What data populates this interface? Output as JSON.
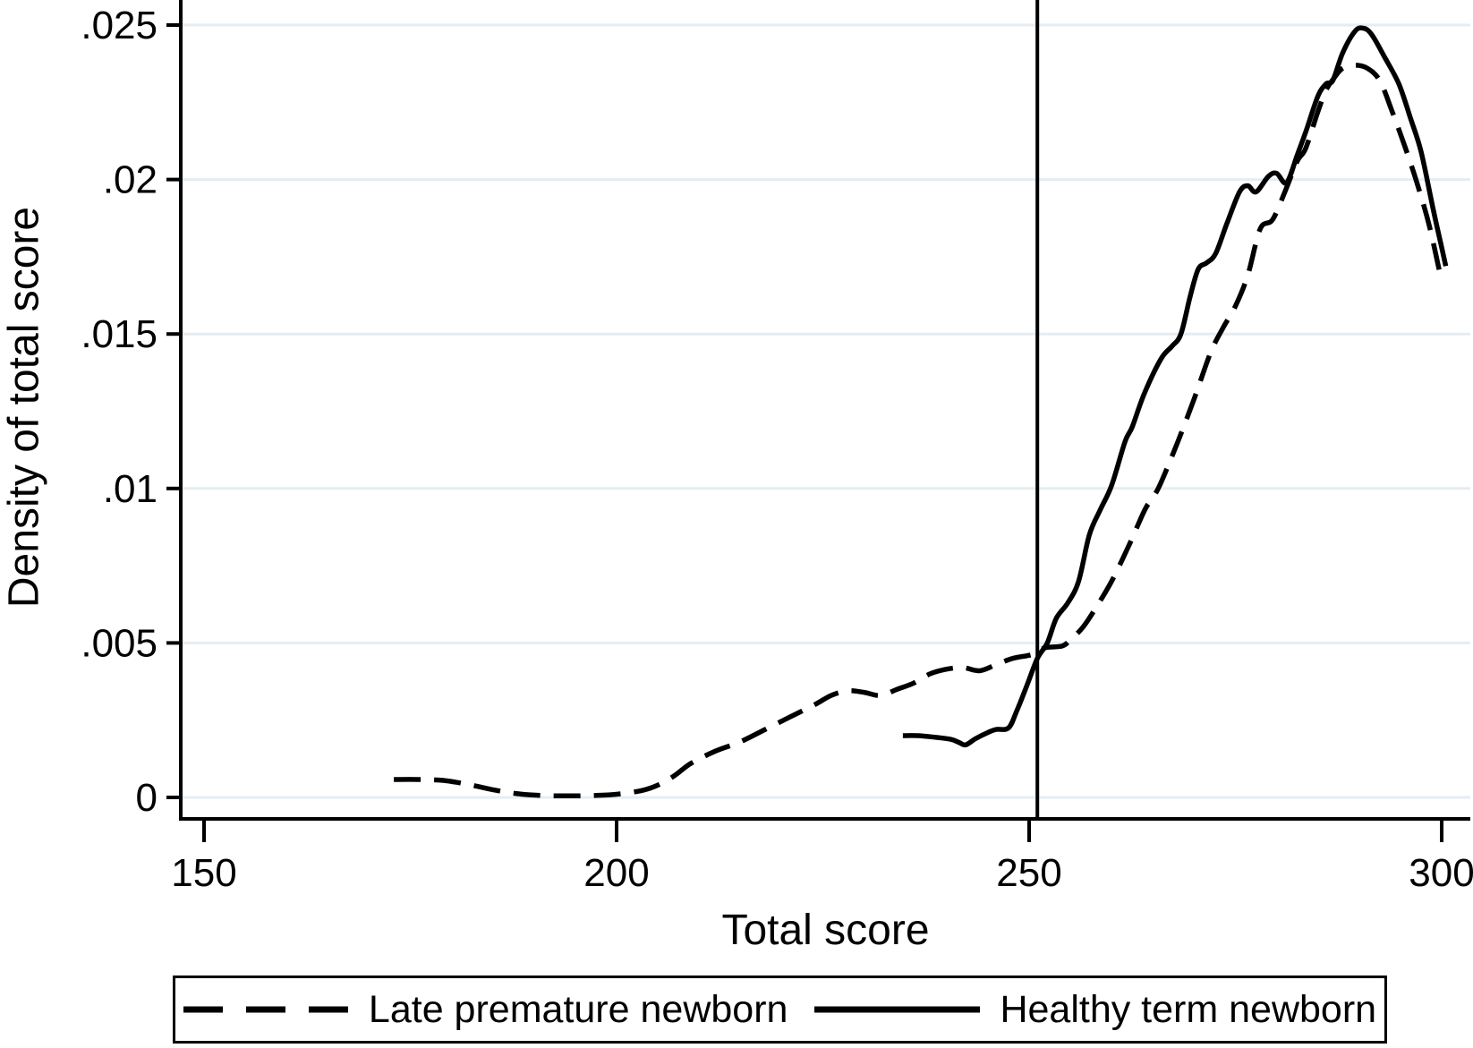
{
  "chart_data": {
    "type": "line",
    "title": "",
    "xlabel": "Total score",
    "ylabel": "Density of total score",
    "x_ticks": [
      150,
      200,
      250,
      300
    ],
    "y_ticks": [
      0,
      0.005,
      0.01,
      0.015,
      0.02,
      0.025
    ],
    "y_tick_labels": [
      "0",
      ".005",
      ".01",
      ".015",
      ".02",
      ".025"
    ],
    "xlim": [
      147,
      303.5
    ],
    "ylim": [
      -0.0007,
      0.0258
    ],
    "grid": "horizontal",
    "gridline_color": "#e5edf3",
    "axis_color": "#000000",
    "line_color": "#000000",
    "reference_line_x": 251,
    "legend_position": "bottom",
    "series": [
      {
        "name": "Late premature newborn",
        "style": "dashed",
        "color": "#000000",
        "points": [
          [
            173,
            0.00058
          ],
          [
            176,
            0.00058
          ],
          [
            179,
            0.00055
          ],
          [
            182,
            0.00042
          ],
          [
            185,
            0.00025
          ],
          [
            188,
            0.00012
          ],
          [
            191,
            6e-05
          ],
          [
            194,
            5e-05
          ],
          [
            197,
            6e-05
          ],
          [
            200,
            0.0001
          ],
          [
            203,
            0.00022
          ],
          [
            205,
            0.0004
          ],
          [
            207,
            0.0007
          ],
          [
            209,
            0.0011
          ],
          [
            212,
            0.0015
          ],
          [
            215,
            0.0018
          ],
          [
            218,
            0.0022
          ],
          [
            221,
            0.0026
          ],
          [
            224,
            0.003
          ],
          [
            226,
            0.0033
          ],
          [
            228,
            0.00345
          ],
          [
            230,
            0.0034
          ],
          [
            232,
            0.0033
          ],
          [
            234,
            0.0035
          ],
          [
            236,
            0.0037
          ],
          [
            238,
            0.004
          ],
          [
            240,
            0.00415
          ],
          [
            242,
            0.0042
          ],
          [
            244,
            0.0041
          ],
          [
            246,
            0.0043
          ],
          [
            248,
            0.0045
          ],
          [
            250,
            0.0046
          ],
          [
            251,
            0.0047
          ],
          [
            252,
            0.00485
          ],
          [
            254,
            0.0049
          ],
          [
            255,
            0.0051
          ],
          [
            256.5,
            0.0055
          ],
          [
            258,
            0.0061
          ],
          [
            260,
            0.007
          ],
          [
            262,
            0.0081
          ],
          [
            264,
            0.0093
          ],
          [
            265,
            0.0097
          ],
          [
            266,
            0.0102
          ],
          [
            268,
            0.0115
          ],
          [
            270,
            0.0129
          ],
          [
            272,
            0.0144
          ],
          [
            273.5,
            0.0152
          ],
          [
            275,
            0.0159
          ],
          [
            276.5,
            0.0169
          ],
          [
            278,
            0.0184
          ],
          [
            279.5,
            0.0187
          ],
          [
            281,
            0.0196
          ],
          [
            282.5,
            0.0206
          ],
          [
            283.5,
            0.021
          ],
          [
            285,
            0.0222
          ],
          [
            286,
            0.0229
          ],
          [
            287,
            0.0233
          ],
          [
            288,
            0.0236
          ],
          [
            289.5,
            0.0237
          ],
          [
            291,
            0.0236
          ],
          [
            292.5,
            0.0232
          ],
          [
            294,
            0.0222
          ],
          [
            295.5,
            0.0211
          ],
          [
            297,
            0.0199
          ],
          [
            298.5,
            0.0185
          ],
          [
            300,
            0.0167
          ]
        ]
      },
      {
        "name": "Healthy term newborn",
        "style": "solid",
        "color": "#000000",
        "points": [
          [
            234.7,
            0.002
          ],
          [
            236.5,
            0.002
          ],
          [
            238.5,
            0.00195
          ],
          [
            240.5,
            0.00188
          ],
          [
            241.5,
            0.00178
          ],
          [
            242.3,
            0.0017
          ],
          [
            243.5,
            0.0019
          ],
          [
            245,
            0.0021
          ],
          [
            246,
            0.0022
          ],
          [
            247.5,
            0.00225
          ],
          [
            248.5,
            0.0028
          ],
          [
            249.7,
            0.0036
          ],
          [
            251,
            0.0045
          ],
          [
            252.2,
            0.005
          ],
          [
            253.3,
            0.0058
          ],
          [
            254.7,
            0.0063
          ],
          [
            256,
            0.007
          ],
          [
            257.3,
            0.0085
          ],
          [
            258.6,
            0.0093
          ],
          [
            260,
            0.0101
          ],
          [
            261.6,
            0.0115
          ],
          [
            262.5,
            0.012
          ],
          [
            264,
            0.0131
          ],
          [
            266,
            0.0142
          ],
          [
            267.3,
            0.0146
          ],
          [
            268.4,
            0.015
          ],
          [
            269.5,
            0.0162
          ],
          [
            270.5,
            0.0171
          ],
          [
            271.5,
            0.0173
          ],
          [
            272.6,
            0.0176
          ],
          [
            274,
            0.0186
          ],
          [
            275.5,
            0.0196
          ],
          [
            276.5,
            0.0198
          ],
          [
            277.5,
            0.0196
          ],
          [
            279,
            0.0201
          ],
          [
            280,
            0.0202
          ],
          [
            281.2,
            0.0199
          ],
          [
            282.5,
            0.0208
          ],
          [
            283.6,
            0.0216
          ],
          [
            285,
            0.0227
          ],
          [
            286,
            0.0231
          ],
          [
            286.8,
            0.0232
          ],
          [
            288,
            0.0241
          ],
          [
            289.5,
            0.0248
          ],
          [
            290.5,
            0.0249
          ],
          [
            291.5,
            0.0247
          ],
          [
            293,
            0.024
          ],
          [
            294.8,
            0.0231
          ],
          [
            296.2,
            0.022
          ],
          [
            297.5,
            0.0209
          ],
          [
            299,
            0.019
          ],
          [
            300,
            0.0178
          ],
          [
            300.5,
            0.0172
          ]
        ]
      }
    ]
  }
}
